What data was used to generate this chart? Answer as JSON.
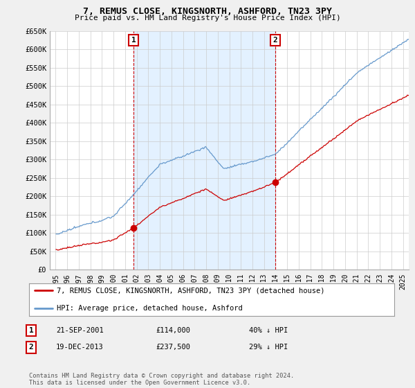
{
  "title": "7, REMUS CLOSE, KINGSNORTH, ASHFORD, TN23 3PY",
  "subtitle": "Price paid vs. HM Land Registry's House Price Index (HPI)",
  "ylabel_ticks": [
    "£0",
    "£50K",
    "£100K",
    "£150K",
    "£200K",
    "£250K",
    "£300K",
    "£350K",
    "£400K",
    "£450K",
    "£500K",
    "£550K",
    "£600K",
    "£650K"
  ],
  "ytick_vals": [
    0,
    50000,
    100000,
    150000,
    200000,
    250000,
    300000,
    350000,
    400000,
    450000,
    500000,
    550000,
    600000,
    650000
  ],
  "ylim": [
    0,
    650000
  ],
  "sale1_x": 2001.73,
  "sale1_price": 114000,
  "sale2_x": 2013.97,
  "sale2_price": 237500,
  "hpi_color": "#6699cc",
  "hpi_fill_color": "#ddeeff",
  "price_color": "#cc0000",
  "background_color": "#f0f0f0",
  "plot_background": "#ffffff",
  "legend_entry1": "7, REMUS CLOSE, KINGSNORTH, ASHFORD, TN23 3PY (detached house)",
  "legend_entry2": "HPI: Average price, detached house, Ashford",
  "footnote": "Contains HM Land Registry data © Crown copyright and database right 2024.\nThis data is licensed under the Open Government Licence v3.0.",
  "row1_date": "21-SEP-2001",
  "row1_price": "£114,000",
  "row1_pct": "40% ↓ HPI",
  "row2_date": "19-DEC-2013",
  "row2_price": "£237,500",
  "row2_pct": "29% ↓ HPI"
}
